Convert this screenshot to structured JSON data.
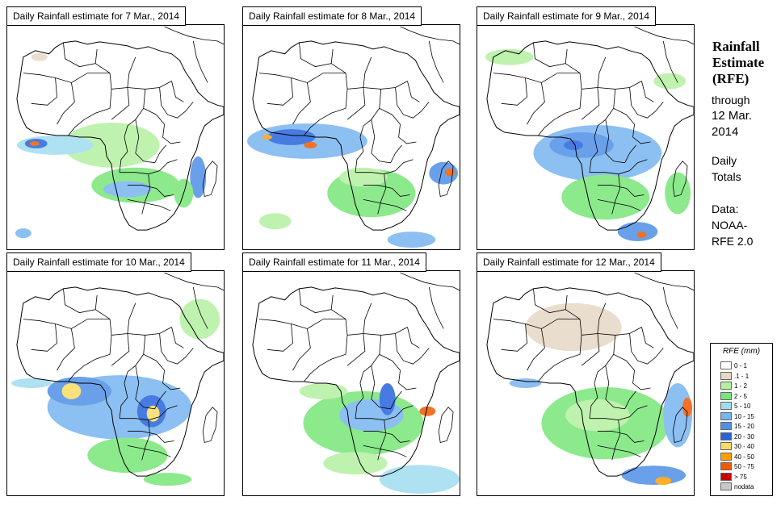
{
  "panels": [
    {
      "title": "Daily Rainfall estimate for  7 Mar., 2014"
    },
    {
      "title": "Daily Rainfall estimate for  8 Mar., 2014"
    },
    {
      "title": "Daily Rainfall estimate for  9 Mar., 2014"
    },
    {
      "title": "Daily Rainfall estimate for  10 Mar., 2014"
    },
    {
      "title": "Daily Rainfall estimate for  11 Mar., 2014"
    },
    {
      "title": "Daily Rainfall estimate for  12 Mar., 2014"
    }
  ],
  "sidebar": {
    "title_line1": "Rainfall",
    "title_line2": "Estimate",
    "title_line3": "(RFE)",
    "through": "through",
    "date_line1": "12 Mar.",
    "date_line2": "2014",
    "daily1": "Daily",
    "daily2": "Totals",
    "data_label": "Data:",
    "data_line1": "NOAA-",
    "data_line2": "RFE 2.0"
  },
  "legend": {
    "title": "RFE (mm)",
    "items": [
      {
        "label": "0 - 1",
        "color": "#ffffff"
      },
      {
        "label": ".1 - 1",
        "color": "#e6d8c6"
      },
      {
        "label": "1 - 2",
        "color": "#b4f0a0"
      },
      {
        "label": "2 - 5",
        "color": "#78e678"
      },
      {
        "label": "5 - 10",
        "color": "#a0dcf0"
      },
      {
        "label": "10 - 15",
        "color": "#78b4f0"
      },
      {
        "label": "15 - 20",
        "color": "#5090e6"
      },
      {
        "label": "20 - 30",
        "color": "#2864dc"
      },
      {
        "label": "30 - 40",
        "color": "#fadc64"
      },
      {
        "label": "40 - 50",
        "color": "#ffa000"
      },
      {
        "label": "50 - 75",
        "color": "#f05a00"
      },
      {
        "label": "> 75",
        "color": "#c80000"
      },
      {
        "label": "nodata",
        "color": "#c8c8c8"
      }
    ]
  }
}
